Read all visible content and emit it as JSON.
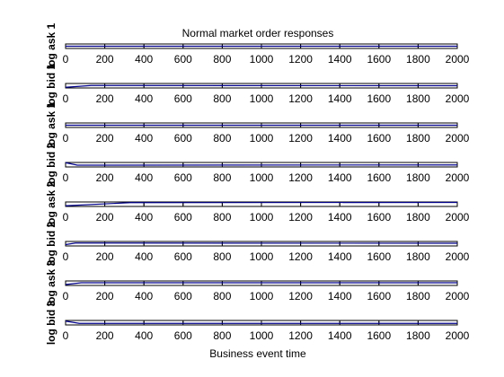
{
  "chart_data": {
    "type": "line",
    "title": "Normal market order responses",
    "xlabel": "Business event time",
    "xlim": [
      0,
      2000
    ],
    "xticks": [
      "0",
      "200",
      "400",
      "600",
      "800",
      "1000",
      "1200",
      "1400",
      "1600",
      "1800",
      "2000"
    ],
    "series_color": "#00008b",
    "panels": [
      {
        "ylabel": "log ask 1",
        "ylim": [
          0,
          1
        ],
        "line": {
          "x": [
            0,
            2000
          ],
          "y": [
            0.5,
            0.5
          ]
        }
      },
      {
        "ylabel": "log bid 1",
        "ylim": [
          0,
          1
        ],
        "line": {
          "x": [
            0,
            130,
            2000
          ],
          "y": [
            0.15,
            0.55,
            0.5
          ]
        }
      },
      {
        "ylabel": "log ask 1",
        "ylim": [
          0,
          1
        ],
        "line": {
          "x": [
            0,
            2000
          ],
          "y": [
            0.5,
            0.5
          ]
        }
      },
      {
        "ylabel": "log bid 2",
        "ylim": [
          0,
          1
        ],
        "line": {
          "x": [
            0,
            60,
            2000
          ],
          "y": [
            0.95,
            0.4,
            0.45
          ]
        }
      },
      {
        "ylabel": "log ask 2",
        "ylim": [
          0,
          1
        ],
        "line": {
          "x": [
            0,
            330,
            2000
          ],
          "y": [
            0.15,
            0.85,
            0.9
          ]
        }
      },
      {
        "ylabel": "log bid 2",
        "ylim": [
          0,
          1
        ],
        "line": {
          "x": [
            0,
            50,
            2000
          ],
          "y": [
            0.3,
            0.65,
            0.6
          ]
        }
      },
      {
        "ylabel": "log ask 3",
        "ylim": [
          0,
          1
        ],
        "line": {
          "x": [
            0,
            80,
            2000
          ],
          "y": [
            0.2,
            0.6,
            0.6
          ]
        }
      },
      {
        "ylabel": "log bid 3",
        "ylim": [
          0,
          1
        ],
        "line": {
          "x": [
            0,
            70,
            2000
          ],
          "y": [
            0.85,
            0.35,
            0.35
          ]
        }
      }
    ]
  }
}
